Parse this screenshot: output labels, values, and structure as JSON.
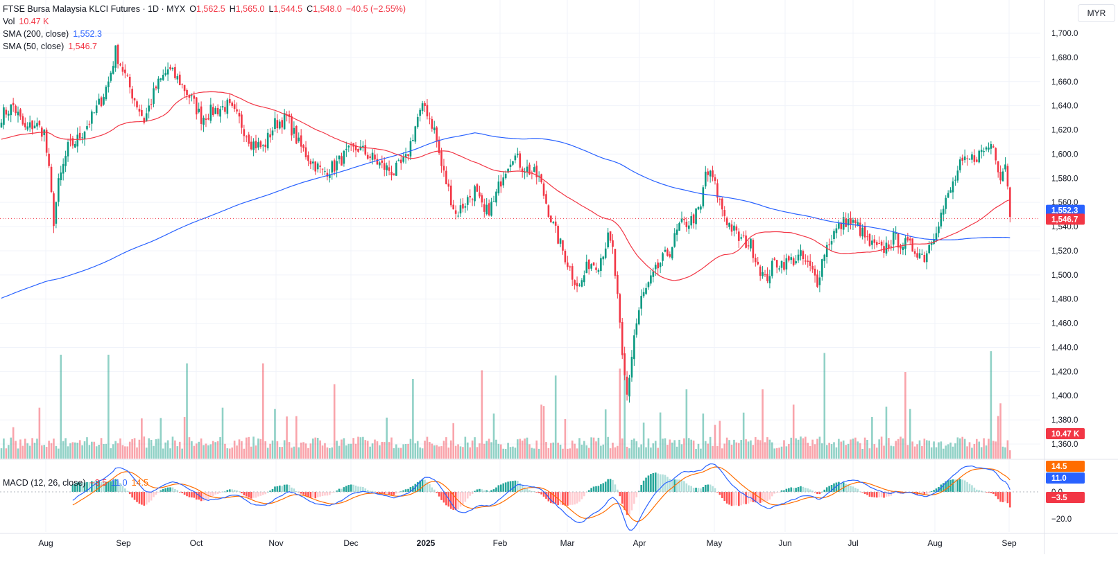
{
  "header": {
    "symbol": "FTSE Bursa Malaysia KLCI Futures · 1D · MYX",
    "open_label": "O",
    "open": "1,562.5",
    "high_label": "H",
    "high": "1,565.0",
    "low_label": "L",
    "low": "1,544.5",
    "close_label": "C",
    "close": "1,548.0",
    "change": "−40.5 (−2.55%)"
  },
  "indicators": {
    "vol_label": "Vol",
    "vol_value": "10.47 K",
    "sma200_label": "SMA (200, close)",
    "sma200_value": "1,552.3",
    "sma50_label": "SMA (50, close)",
    "sma50_value": "1,546.7",
    "macd_label": "MACD (12, 26, close)",
    "macd_hist": "−3.5",
    "macd_line": "11.0",
    "macd_signal": "14.5"
  },
  "currency": "MYR",
  "colors": {
    "up": "#089981",
    "down": "#f23645",
    "sma200": "#2962ff",
    "sma50": "#f23645",
    "macd": "#2962ff",
    "signal": "#ff6d00"
  },
  "chart_data": {
    "type": "candlestick",
    "price_axis": {
      "min": 1360,
      "max": 1700,
      "ticks": [
        1360,
        1380,
        1400,
        1420,
        1440,
        1460,
        1480,
        1500,
        1520,
        1540,
        1560,
        1580,
        1600,
        1620,
        1640,
        1660,
        1680,
        1700
      ],
      "tick_labels": [
        "1,360.0",
        "1,380.0",
        "1,400.0",
        "1,420.0",
        "1,440.0",
        "1,460.0",
        "1,480.0",
        "1,500.0",
        "1,520.0",
        "1,540.0",
        "1,560.0",
        "1,580.0",
        "1,600.0",
        "1,620.0",
        "1,640.0",
        "1,660.0",
        "1,680.0",
        "1,700.0"
      ]
    },
    "time_axis": {
      "labels": [
        "Aug",
        "Sep",
        "Oct",
        "Nov",
        "Dec",
        "2025",
        "Feb",
        "Mar",
        "Apr",
        "May",
        "Jun",
        "Jul",
        "Aug",
        "Sep"
      ],
      "bold": [
        "2025"
      ]
    },
    "macd_axis": {
      "ticks": [
        0,
        -20
      ],
      "tick_labels": [
        "0.0",
        "−20.0"
      ]
    },
    "price_keypoints": [
      [
        0,
        1632
      ],
      [
        5,
        1640
      ],
      [
        10,
        1620
      ],
      [
        14,
        1625
      ],
      [
        18,
        1618
      ],
      [
        20,
        1585
      ],
      [
        22,
        1545
      ],
      [
        24,
        1575
      ],
      [
        28,
        1605
      ],
      [
        32,
        1612
      ],
      [
        38,
        1630
      ],
      [
        42,
        1645
      ],
      [
        45,
        1660
      ],
      [
        48,
        1685
      ],
      [
        52,
        1665
      ],
      [
        55,
        1650
      ],
      [
        60,
        1628
      ],
      [
        65,
        1655
      ],
      [
        70,
        1670
      ],
      [
        75,
        1660
      ],
      [
        80,
        1645
      ],
      [
        84,
        1630
      ],
      [
        88,
        1635
      ],
      [
        95,
        1640
      ],
      [
        100,
        1628
      ],
      [
        105,
        1610
      ],
      [
        110,
        1605
      ],
      [
        115,
        1625
      ],
      [
        120,
        1630
      ],
      [
        125,
        1608
      ],
      [
        130,
        1595
      ],
      [
        135,
        1585
      ],
      [
        140,
        1590
      ],
      [
        145,
        1600
      ],
      [
        150,
        1605
      ],
      [
        155,
        1598
      ],
      [
        160,
        1590
      ],
      [
        165,
        1585
      ],
      [
        170,
        1595
      ],
      [
        175,
        1630
      ],
      [
        178,
        1640
      ],
      [
        182,
        1620
      ],
      [
        185,
        1590
      ],
      [
        188,
        1570
      ],
      [
        191,
        1550
      ],
      [
        195,
        1560
      ],
      [
        199,
        1570
      ],
      [
        203,
        1550
      ],
      [
        207,
        1560
      ],
      [
        211,
        1585
      ],
      [
        215,
        1600
      ],
      [
        219,
        1590
      ],
      [
        223,
        1585
      ],
      [
        226,
        1580
      ],
      [
        229,
        1560
      ],
      [
        232,
        1540
      ],
      [
        236,
        1520
      ],
      [
        240,
        1500
      ],
      [
        243,
        1490
      ],
      [
        247,
        1510
      ],
      [
        251,
        1510
      ],
      [
        255,
        1530
      ],
      [
        257,
        1520
      ],
      [
        259,
        1480
      ],
      [
        261,
        1430
      ],
      [
        263,
        1400
      ],
      [
        266,
        1450
      ],
      [
        269,
        1480
      ],
      [
        273,
        1495
      ],
      [
        277,
        1510
      ],
      [
        281,
        1520
      ],
      [
        285,
        1540
      ],
      [
        290,
        1545
      ],
      [
        294,
        1555
      ],
      [
        296,
        1585
      ],
      [
        299,
        1580
      ],
      [
        302,
        1560
      ],
      [
        305,
        1545
      ],
      [
        310,
        1530
      ],
      [
        315,
        1525
      ],
      [
        318,
        1510
      ],
      [
        321,
        1495
      ],
      [
        325,
        1510
      ],
      [
        330,
        1510
      ],
      [
        336,
        1515
      ],
      [
        340,
        1505
      ],
      [
        343,
        1495
      ],
      [
        346,
        1520
      ],
      [
        350,
        1535
      ],
      [
        355,
        1545
      ],
      [
        360,
        1540
      ],
      [
        365,
        1525
      ],
      [
        370,
        1520
      ],
      [
        375,
        1530
      ],
      [
        380,
        1525
      ],
      [
        385,
        1520
      ],
      [
        388,
        1515
      ],
      [
        391,
        1530
      ],
      [
        395,
        1550
      ],
      [
        399,
        1570
      ],
      [
        403,
        1590
      ],
      [
        407,
        1595
      ],
      [
        411,
        1600
      ],
      [
        414,
        1605
      ],
      [
        417,
        1610
      ],
      [
        420,
        1580
      ],
      [
        422,
        1595
      ],
      [
        424,
        1548
      ]
    ],
    "volume_peaks": [
      [
        25,
        "up",
        60
      ],
      [
        45,
        "up",
        60
      ],
      [
        78,
        "up",
        55
      ],
      [
        110,
        "down",
        55
      ],
      [
        140,
        "down",
        43
      ],
      [
        173,
        "up",
        46
      ],
      [
        202,
        "down",
        51
      ],
      [
        233,
        "up",
        48
      ],
      [
        260,
        "down",
        52
      ],
      [
        262,
        "up",
        60
      ],
      [
        288,
        "up",
        40
      ],
      [
        320,
        "down",
        40
      ],
      [
        346,
        "up",
        61
      ],
      [
        380,
        "down",
        50
      ],
      [
        416,
        "up",
        62
      ]
    ],
    "volume_last": "10.47 K",
    "sma200_last": 1552.3,
    "sma50_last": 1546.7,
    "last_close": 1548.0,
    "macd_last": {
      "hist": -3.5,
      "macd": 11.0,
      "signal": 14.5
    }
  }
}
